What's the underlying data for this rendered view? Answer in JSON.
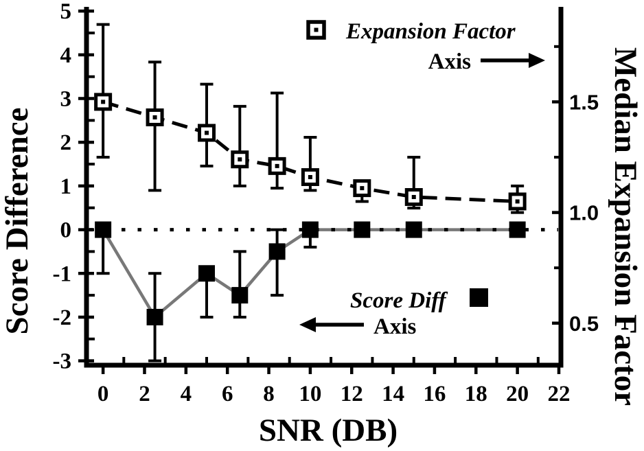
{
  "figure": {
    "kind": "dual-axis line chart",
    "background": "#ffffff"
  },
  "colors": {
    "foreground": "#000000",
    "background": "#ffffff",
    "score_diff_line": "#787878"
  },
  "chart_data": {
    "type": "line",
    "title": "",
    "grid": false,
    "x_axis": {
      "label": "SNR (DB)",
      "range": [
        -0.8,
        22.1
      ],
      "major_ticks": [
        0,
        2,
        4,
        6,
        8,
        10,
        12,
        14,
        16,
        18,
        20,
        22
      ],
      "minor_ticks": [
        1,
        3,
        5,
        7,
        9,
        11,
        13,
        15,
        17,
        19,
        21
      ]
    },
    "left_axis": {
      "label": "Score Difference",
      "range": [
        -3.1,
        5.05
      ],
      "major_ticks": [
        5,
        4,
        3,
        2,
        1,
        0,
        -1,
        -2,
        -3
      ],
      "minor_ticks": [
        4.5,
        3.5,
        2.5,
        1.5,
        0.5,
        -0.5,
        -1.5,
        -2.5
      ]
    },
    "right_axis": {
      "label": "Median Expansion Factor",
      "range": [
        0.31,
        1.92
      ],
      "major_ticks": [
        1.5,
        1.0,
        0.5
      ],
      "major_tick_labels": [
        "1.5",
        "1.0",
        "0.5"
      ],
      "minor_ticks": [
        1.75,
        1.25,
        0.75
      ]
    },
    "zero_reference_line": {
      "axis": "left",
      "value": 0,
      "style": "dotted",
      "color": "#000000"
    },
    "series": [
      {
        "name": "Expansion Factor",
        "axis": "right",
        "marker": "open-square-dot",
        "line_style": "dashed",
        "line_color": "#000000",
        "x": [
          0,
          2.5,
          5,
          6.6,
          8.4,
          10,
          12.5,
          15,
          20
        ],
        "y": [
          1.5,
          1.43,
          1.36,
          1.24,
          1.21,
          1.16,
          1.11,
          1.07,
          1.05
        ],
        "err_hi": [
          1.85,
          1.68,
          1.58,
          1.48,
          1.54,
          1.34,
          1.14,
          1.25,
          1.12
        ],
        "err_lo": [
          1.25,
          1.1,
          1.21,
          1.12,
          1.11,
          1.1,
          1.05,
          1.02,
          1.0
        ]
      },
      {
        "name": "Score Diff",
        "axis": "left",
        "marker": "filled-square",
        "line_style": "solid",
        "line_color": "#787878",
        "x": [
          0,
          2.5,
          5,
          6.6,
          8.4,
          10,
          12.5,
          15,
          20
        ],
        "y": [
          0,
          -2,
          -1,
          -1.5,
          -0.5,
          0,
          0,
          0,
          0
        ],
        "err_hi": [
          0,
          -1,
          -1,
          -0.5,
          0,
          0,
          0,
          0,
          0
        ],
        "err_lo": [
          -1,
          -3,
          -2,
          -2,
          -1.5,
          -0.4,
          0,
          0,
          0
        ]
      }
    ]
  },
  "legend": {
    "expansion_factor": {
      "label": "Expansion Factor",
      "axis_caption": "Axis",
      "arrow_direction": "right",
      "marker": "open-square-dot"
    },
    "score_diff": {
      "label": "Score Diff",
      "axis_caption": "Axis",
      "arrow_direction": "left",
      "marker": "filled-square"
    }
  }
}
